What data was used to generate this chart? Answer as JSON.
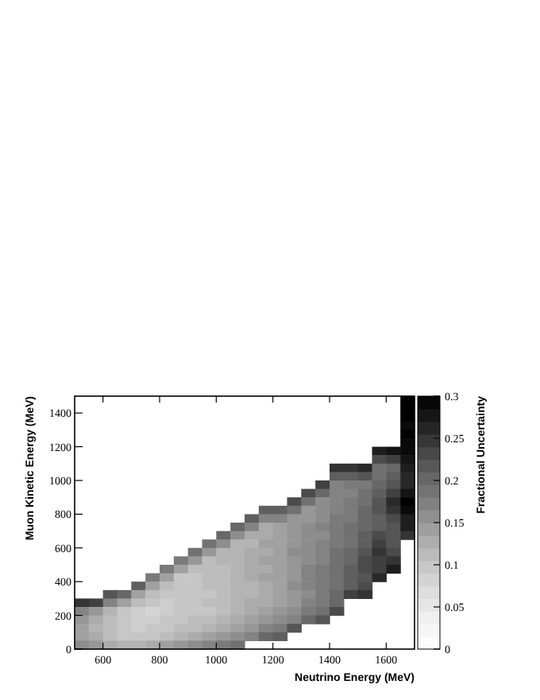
{
  "chart_data": {
    "type": "heatmap",
    "xlabel": "Neutrino Energy (MeV)",
    "ylabel": "Muon Kinetic Energy (MeV)",
    "clabel": "Fractional Uncertainty",
    "xlim": [
      500,
      1700
    ],
    "xticks": [
      600,
      800,
      1000,
      1200,
      1400,
      1600
    ],
    "ylim": [
      0,
      1500
    ],
    "yticks": [
      0,
      200,
      400,
      600,
      800,
      1000,
      1200,
      1400
    ],
    "clim": [
      0,
      0.3
    ],
    "cticks": [
      0,
      0.05,
      0.1,
      0.15,
      0.2,
      0.25,
      0.3
    ],
    "cells": [
      [
        null,
        null,
        null,
        null,
        null,
        null,
        null,
        null,
        null,
        null,
        null,
        null,
        null,
        null,
        null,
        null,
        null,
        null,
        null,
        null,
        null,
        null,
        null,
        0.3
      ],
      [
        null,
        null,
        null,
        null,
        null,
        null,
        null,
        null,
        null,
        null,
        null,
        null,
        null,
        null,
        null,
        null,
        null,
        null,
        null,
        null,
        null,
        null,
        null,
        0.3
      ],
      [
        null,
        null,
        null,
        null,
        null,
        null,
        null,
        null,
        null,
        null,
        null,
        null,
        null,
        null,
        null,
        null,
        null,
        null,
        null,
        null,
        null,
        null,
        null,
        0.3
      ],
      [
        null,
        null,
        null,
        null,
        null,
        null,
        null,
        null,
        null,
        null,
        null,
        null,
        null,
        null,
        null,
        null,
        null,
        null,
        null,
        null,
        null,
        null,
        null,
        0.29
      ],
      [
        null,
        null,
        null,
        null,
        null,
        null,
        null,
        null,
        null,
        null,
        null,
        null,
        null,
        null,
        null,
        null,
        null,
        null,
        null,
        null,
        null,
        null,
        null,
        0.3
      ],
      [
        null,
        null,
        null,
        null,
        null,
        null,
        null,
        null,
        null,
        null,
        null,
        null,
        null,
        null,
        null,
        null,
        null,
        null,
        null,
        null,
        null,
        null,
        null,
        0.29
      ],
      [
        null,
        null,
        null,
        null,
        null,
        null,
        null,
        null,
        null,
        null,
        null,
        null,
        null,
        null,
        null,
        null,
        null,
        null,
        null,
        null,
        null,
        0.27,
        0.28,
        0.29
      ],
      [
        null,
        null,
        null,
        null,
        null,
        null,
        null,
        null,
        null,
        null,
        null,
        null,
        null,
        null,
        null,
        null,
        null,
        null,
        null,
        null,
        null,
        0.23,
        0.24,
        0.28
      ],
      [
        null,
        null,
        null,
        null,
        null,
        null,
        null,
        null,
        null,
        null,
        null,
        null,
        null,
        null,
        null,
        null,
        null,
        null,
        0.25,
        0.25,
        0.26,
        0.19,
        0.2,
        0.27
      ],
      [
        null,
        null,
        null,
        null,
        null,
        null,
        null,
        null,
        null,
        null,
        null,
        null,
        null,
        null,
        null,
        null,
        null,
        null,
        0.21,
        0.21,
        0.22,
        0.19,
        0.21,
        0.26
      ],
      [
        null,
        null,
        null,
        null,
        null,
        null,
        null,
        null,
        null,
        null,
        null,
        null,
        null,
        null,
        null,
        null,
        null,
        0.24,
        0.17,
        0.18,
        0.18,
        0.2,
        0.22,
        0.26
      ],
      [
        null,
        null,
        null,
        null,
        null,
        null,
        null,
        null,
        null,
        null,
        null,
        null,
        null,
        null,
        null,
        null,
        0.23,
        0.2,
        0.17,
        0.17,
        0.19,
        0.21,
        0.24,
        0.28
      ],
      [
        null,
        null,
        null,
        null,
        null,
        null,
        null,
        null,
        null,
        null,
        null,
        null,
        null,
        null,
        null,
        0.23,
        0.19,
        0.16,
        0.17,
        0.18,
        0.19,
        0.22,
        0.26,
        0.3
      ],
      [
        null,
        null,
        null,
        null,
        null,
        null,
        null,
        null,
        null,
        null,
        null,
        null,
        null,
        0.21,
        0.21,
        0.19,
        0.15,
        0.16,
        0.17,
        0.18,
        0.2,
        0.22,
        0.25,
        0.29
      ],
      [
        null,
        null,
        null,
        null,
        null,
        null,
        null,
        null,
        null,
        null,
        null,
        null,
        0.21,
        0.17,
        0.17,
        0.15,
        0.15,
        0.16,
        0.18,
        0.18,
        0.2,
        0.21,
        0.23,
        0.27
      ],
      [
        null,
        null,
        null,
        null,
        null,
        null,
        null,
        null,
        null,
        null,
        null,
        0.2,
        0.17,
        0.13,
        0.14,
        0.15,
        0.16,
        0.17,
        0.18,
        0.19,
        0.2,
        0.21,
        0.22,
        0.27
      ],
      [
        null,
        null,
        null,
        null,
        null,
        null,
        null,
        null,
        null,
        null,
        0.2,
        0.16,
        0.13,
        0.13,
        0.14,
        0.15,
        0.16,
        0.16,
        0.18,
        0.19,
        0.21,
        0.23,
        0.22,
        0.25
      ],
      [
        null,
        null,
        null,
        null,
        null,
        null,
        null,
        null,
        null,
        0.19,
        0.16,
        0.12,
        0.12,
        0.14,
        0.14,
        0.15,
        0.16,
        0.17,
        0.18,
        0.19,
        0.21,
        0.24,
        0.22,
        null
      ],
      [
        null,
        null,
        null,
        null,
        null,
        null,
        null,
        null,
        0.19,
        0.15,
        0.12,
        0.12,
        0.13,
        0.13,
        0.14,
        0.16,
        0.16,
        0.17,
        0.19,
        0.2,
        0.22,
        0.25,
        0.23,
        null
      ],
      [
        null,
        null,
        null,
        null,
        null,
        null,
        null,
        0.18,
        0.15,
        0.11,
        0.12,
        0.12,
        0.13,
        0.14,
        0.14,
        0.15,
        0.16,
        0.17,
        0.19,
        0.2,
        0.23,
        0.24,
        0.25,
        null
      ],
      [
        null,
        null,
        null,
        null,
        null,
        null,
        0.18,
        0.14,
        0.11,
        0.11,
        0.11,
        0.12,
        0.13,
        0.13,
        0.14,
        0.15,
        0.17,
        0.18,
        0.19,
        0.21,
        0.23,
        0.24,
        0.27,
        null
      ],
      [
        null,
        null,
        null,
        null,
        null,
        0.18,
        0.14,
        0.1,
        0.1,
        0.11,
        0.11,
        0.12,
        0.13,
        0.14,
        0.14,
        0.15,
        0.17,
        0.18,
        0.19,
        0.21,
        0.22,
        0.26,
        null,
        null
      ],
      [
        null,
        null,
        null,
        null,
        0.21,
        0.14,
        0.11,
        0.1,
        0.1,
        0.11,
        0.11,
        0.12,
        0.12,
        0.13,
        0.14,
        0.16,
        0.17,
        0.18,
        0.19,
        0.21,
        0.23,
        null,
        null,
        null
      ],
      [
        null,
        null,
        0.22,
        0.2,
        0.14,
        0.11,
        0.1,
        0.1,
        0.1,
        0.1,
        0.11,
        0.12,
        0.12,
        0.13,
        0.14,
        0.15,
        0.16,
        0.18,
        0.2,
        0.24,
        0.25,
        null,
        null,
        null
      ],
      [
        0.25,
        0.24,
        0.17,
        0.14,
        0.11,
        0.1,
        0.09,
        0.1,
        0.1,
        0.11,
        0.11,
        0.12,
        0.13,
        0.13,
        0.14,
        0.15,
        0.17,
        0.18,
        0.2,
        null,
        null,
        null,
        null,
        null
      ],
      [
        0.17,
        0.15,
        0.12,
        0.1,
        0.09,
        0.08,
        0.09,
        0.1,
        0.1,
        0.1,
        0.11,
        0.12,
        0.13,
        0.14,
        0.15,
        0.16,
        0.18,
        0.19,
        0.23,
        null,
        null,
        null,
        null,
        null
      ],
      [
        0.15,
        0.13,
        0.11,
        0.1,
        0.09,
        0.09,
        0.1,
        0.1,
        0.11,
        0.11,
        0.12,
        0.13,
        0.14,
        0.15,
        0.16,
        0.17,
        0.2,
        0.22,
        null,
        null,
        null,
        null,
        null,
        null
      ],
      [
        0.14,
        0.12,
        0.11,
        0.1,
        0.09,
        0.1,
        0.1,
        0.11,
        0.11,
        0.12,
        0.13,
        0.14,
        0.15,
        0.17,
        0.18,
        0.22,
        null,
        null,
        null,
        null,
        null,
        null,
        null,
        null
      ],
      [
        0.14,
        0.13,
        0.11,
        0.1,
        0.1,
        0.1,
        0.11,
        0.12,
        0.13,
        0.14,
        0.15,
        0.16,
        0.17,
        0.2,
        0.21,
        null,
        null,
        null,
        null,
        null,
        null,
        null,
        null,
        null
      ],
      [
        0.16,
        0.15,
        0.13,
        0.12,
        0.12,
        0.13,
        0.14,
        0.15,
        0.16,
        0.17,
        0.18,
        0.19,
        null,
        null,
        null,
        null,
        null,
        null,
        null,
        null,
        null,
        null,
        null,
        null
      ]
    ]
  }
}
